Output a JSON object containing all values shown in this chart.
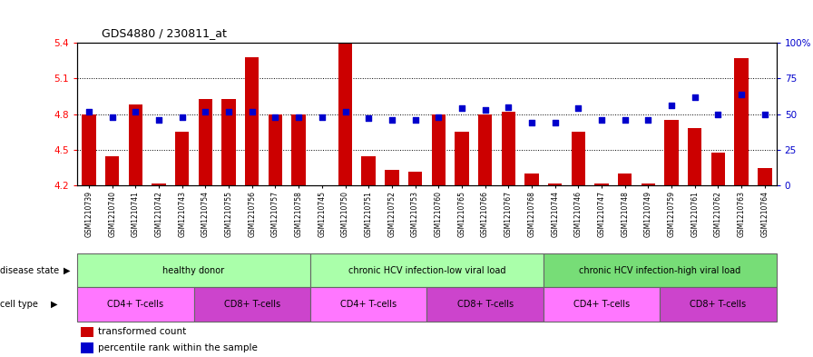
{
  "title": "GDS4880 / 230811_at",
  "samples": [
    "GSM1210739",
    "GSM1210740",
    "GSM1210741",
    "GSM1210742",
    "GSM1210743",
    "GSM1210754",
    "GSM1210755",
    "GSM1210756",
    "GSM1210757",
    "GSM1210758",
    "GSM1210745",
    "GSM1210750",
    "GSM1210751",
    "GSM1210752",
    "GSM1210753",
    "GSM1210760",
    "GSM1210765",
    "GSM1210766",
    "GSM1210767",
    "GSM1210768",
    "GSM1210744",
    "GSM1210746",
    "GSM1210747",
    "GSM1210748",
    "GSM1210749",
    "GSM1210759",
    "GSM1210761",
    "GSM1210762",
    "GSM1210763",
    "GSM1210764"
  ],
  "bar_values": [
    4.8,
    4.45,
    4.88,
    4.22,
    4.65,
    4.93,
    4.93,
    5.28,
    4.8,
    4.8,
    4.2,
    5.4,
    4.45,
    4.33,
    4.32,
    4.8,
    4.65,
    4.8,
    4.82,
    4.3,
    4.22,
    4.65,
    4.22,
    4.3,
    4.22,
    4.75,
    4.68,
    4.48,
    5.27,
    4.35
  ],
  "percentile_values": [
    52,
    48,
    52,
    46,
    48,
    52,
    52,
    52,
    48,
    48,
    48,
    52,
    47,
    46,
    46,
    48,
    54,
    53,
    55,
    44,
    44,
    54,
    46,
    46,
    46,
    56,
    62,
    50,
    64,
    50
  ],
  "ylim_left": [
    4.2,
    5.4
  ],
  "ylim_right": [
    0,
    100
  ],
  "yticks_left": [
    4.2,
    4.5,
    4.8,
    5.1,
    5.4
  ],
  "yticks_right": [
    0,
    25,
    50,
    75,
    100
  ],
  "ytick_right_labels": [
    "0",
    "25",
    "50",
    "75",
    "100%"
  ],
  "grid_lines": [
    4.5,
    4.8,
    5.1
  ],
  "bar_color": "#cc0000",
  "dot_color": "#0000cc",
  "disease_groups": [
    {
      "label": "healthy donor",
      "start": 0,
      "end": 10,
      "color": "#aaffaa"
    },
    {
      "label": "chronic HCV infection-low viral load",
      "start": 10,
      "end": 20,
      "color": "#aaffaa"
    },
    {
      "label": "chronic HCV infection-high viral load",
      "start": 20,
      "end": 30,
      "color": "#77dd77"
    }
  ],
  "cell_groups": [
    {
      "label": "CD4+ T-cells",
      "start": 0,
      "end": 5,
      "color": "#ff77ff"
    },
    {
      "label": "CD8+ T-cells",
      "start": 5,
      "end": 10,
      "color": "#cc44cc"
    },
    {
      "label": "CD4+ T-cells",
      "start": 10,
      "end": 15,
      "color": "#ff77ff"
    },
    {
      "label": "CD8+ T-cells",
      "start": 15,
      "end": 20,
      "color": "#cc44cc"
    },
    {
      "label": "CD4+ T-cells",
      "start": 20,
      "end": 25,
      "color": "#ff77ff"
    },
    {
      "label": "CD8+ T-cells",
      "start": 25,
      "end": 30,
      "color": "#cc44cc"
    }
  ]
}
